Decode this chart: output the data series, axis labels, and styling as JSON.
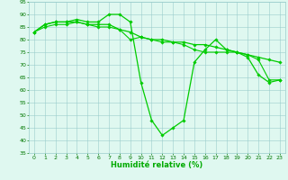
{
  "line1": {
    "x": [
      0,
      1,
      2,
      3,
      4,
      5,
      6,
      7,
      8,
      9,
      10,
      11,
      12,
      13,
      14,
      15,
      16,
      17,
      18,
      19,
      20,
      21,
      22,
      23
    ],
    "y": [
      83,
      86,
      87,
      87,
      88,
      87,
      87,
      90,
      90,
      87,
      63,
      48,
      42,
      45,
      48,
      71,
      76,
      80,
      76,
      75,
      73,
      66,
      63,
      64
    ],
    "color": "#00cc00",
    "marker": "D",
    "markersize": 1.8,
    "linewidth": 0.9
  },
  "line2": {
    "x": [
      0,
      1,
      2,
      3,
      4,
      5,
      6,
      7,
      8,
      9,
      10,
      11,
      12,
      13,
      14,
      15,
      16,
      17,
      18,
      19,
      20,
      21,
      22,
      23
    ],
    "y": [
      83,
      86,
      87,
      87,
      87,
      86,
      86,
      86,
      84,
      83,
      81,
      80,
      80,
      79,
      79,
      78,
      78,
      77,
      76,
      75,
      74,
      73,
      72,
      71
    ],
    "color": "#00cc00",
    "marker": "D",
    "markersize": 1.8,
    "linewidth": 0.9
  },
  "line3": {
    "x": [
      0,
      1,
      2,
      3,
      4,
      5,
      6,
      7,
      8,
      9,
      10,
      11,
      12,
      13,
      14,
      15,
      16,
      17,
      18,
      19,
      20,
      21,
      22,
      23
    ],
    "y": [
      83,
      85,
      86,
      86,
      87,
      86,
      85,
      85,
      84,
      80,
      81,
      80,
      79,
      79,
      78,
      76,
      75,
      75,
      75,
      75,
      74,
      72,
      64,
      64
    ],
    "color": "#00cc00",
    "marker": "D",
    "markersize": 1.8,
    "linewidth": 0.8
  },
  "background_color": "#dff8f0",
  "grid_color": "#99cccc",
  "xlabel": "Humidité relative (%)",
  "xlabel_color": "#00aa00",
  "xlabel_fontsize": 6.0,
  "ylim": [
    35,
    95
  ],
  "xlim": [
    -0.5,
    23.5
  ],
  "yticks": [
    35,
    40,
    45,
    50,
    55,
    60,
    65,
    70,
    75,
    80,
    85,
    90,
    95
  ],
  "xticks": [
    0,
    1,
    2,
    3,
    4,
    5,
    6,
    7,
    8,
    9,
    10,
    11,
    12,
    13,
    14,
    15,
    16,
    17,
    18,
    19,
    20,
    21,
    22,
    23
  ],
  "tick_fontsize": 4.5,
  "tick_color": "#007700",
  "spine_color": "#99cccc"
}
